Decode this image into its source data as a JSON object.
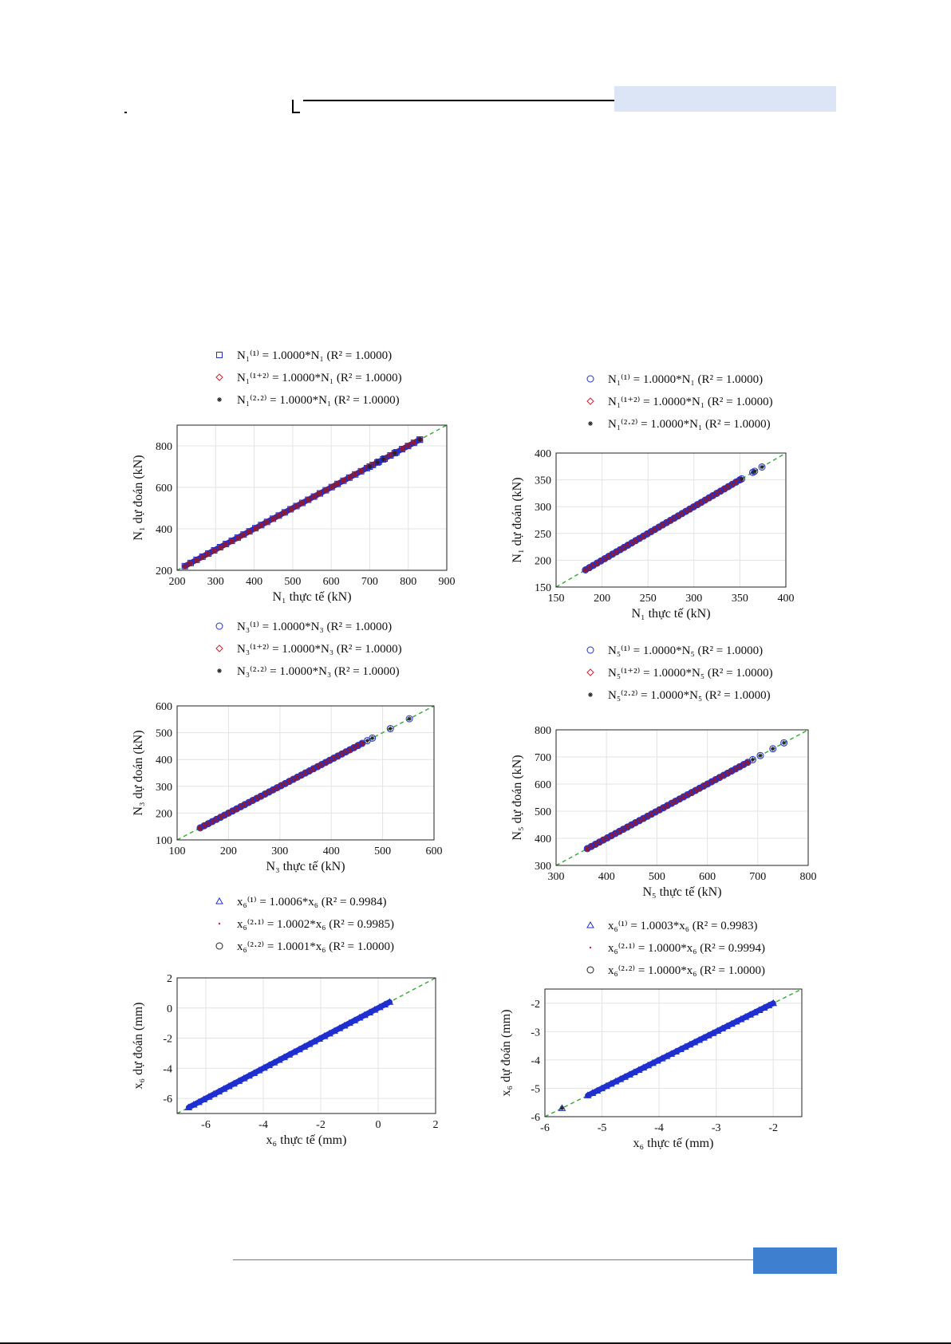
{
  "page": {
    "header_accent_color": "#dbe5f5",
    "footer_line_color": "#4f7fc9",
    "footer_box_color": "#3f7fcf"
  },
  "chart_data": [
    {
      "id": "N1-left",
      "type": "scatter",
      "legend": [
        {
          "label": "N₁⁽¹⁾ = 1.0000*N₁ (R² = 1.0000)",
          "marker": "square",
          "color": "#1f2fd0"
        },
        {
          "label": "N₁⁽¹⁺²⁾ = 1.0000*N₁ (R² = 1.0000)",
          "marker": "diamond",
          "color": "#d01f2f"
        },
        {
          "label": "N₁⁽²·²⁾ = 1.0000*N₁ (R² = 1.0000)",
          "marker": "star",
          "color": "#222222"
        }
      ],
      "xlabel": "N₁ thực tế (kN)",
      "ylabel": "N₁ dự đoán (kN)",
      "xlim": [
        200,
        900
      ],
      "ylim": [
        200,
        900
      ],
      "xticks": [
        200,
        300,
        400,
        500,
        600,
        700,
        800,
        900
      ],
      "yticks": [
        200,
        400,
        600,
        800
      ],
      "grid": true,
      "reference_line": "y = x",
      "reference_color": "#33aa33",
      "series_range": [
        220,
        830
      ],
      "outliers": [
        700,
        720,
        735,
        765,
        830
      ],
      "scatter_color": "#8a1a3a"
    },
    {
      "id": "N1-right",
      "type": "scatter",
      "legend": [
        {
          "label": "N₁⁽¹⁾ = 1.0000*N₁ (R² = 1.0000)",
          "marker": "circle",
          "color": "#1f2fd0"
        },
        {
          "label": "N₁⁽¹⁺²⁾ = 1.0000*N₁ (R² = 1.0000)",
          "marker": "diamond",
          "color": "#d01f2f"
        },
        {
          "label": "N₁⁽²·²⁾ = 1.0000*N₁ (R² = 1.0000)",
          "marker": "star",
          "color": "#222222"
        }
      ],
      "xlabel": "N₁ thực tế (kN)",
      "ylabel": "N₁ dự đoán (kN)",
      "xlim": [
        150,
        400
      ],
      "ylim": [
        150,
        400
      ],
      "xticks": [
        150,
        200,
        250,
        300,
        350,
        400
      ],
      "yticks": [
        150,
        200,
        250,
        300,
        350,
        400
      ],
      "grid": true,
      "reference_line": "y = x",
      "reference_color": "#33aa33",
      "series_range": [
        182,
        350
      ],
      "outliers": [
        352,
        364,
        366,
        374
      ],
      "scatter_color": "#8a1a3a"
    },
    {
      "id": "N3-left",
      "type": "scatter",
      "legend": [
        {
          "label": "N₃⁽¹⁾ = 1.0000*N₃ (R² = 1.0000)",
          "marker": "circle",
          "color": "#1f2fd0"
        },
        {
          "label": "N₃⁽¹⁺²⁾ = 1.0000*N₃ (R² = 1.0000)",
          "marker": "diamond",
          "color": "#d01f2f"
        },
        {
          "label": "N₃⁽²·²⁾ = 1.0000*N₃ (R² = 1.0000)",
          "marker": "star",
          "color": "#222222"
        }
      ],
      "xlabel": "N₃ thực tế (kN)",
      "ylabel": "N₃ dự đoán (kN)",
      "xlim": [
        100,
        600
      ],
      "ylim": [
        100,
        600
      ],
      "xticks": [
        100,
        200,
        300,
        400,
        500,
        600
      ],
      "yticks": [
        100,
        200,
        300,
        400,
        500,
        600
      ],
      "grid": true,
      "reference_line": "y = x",
      "reference_color": "#33aa33",
      "series_range": [
        145,
        460
      ],
      "outliers": [
        470,
        480,
        515,
        552
      ],
      "scatter_color": "#8a1a3a"
    },
    {
      "id": "N5-right",
      "type": "scatter",
      "legend": [
        {
          "label": "N₅⁽¹⁾ = 1.0000*N₅ (R² = 1.0000)",
          "marker": "circle",
          "color": "#1f2fd0"
        },
        {
          "label": "N₅⁽¹⁺²⁾ = 1.0000*N₅ (R² = 1.0000)",
          "marker": "diamond",
          "color": "#d01f2f"
        },
        {
          "label": "N₅⁽²·²⁾ = 1.0000*N₅ (R² = 1.0000)",
          "marker": "star",
          "color": "#222222"
        }
      ],
      "xlabel": "N₅ thực tế (kN)",
      "ylabel": "N₅ dự đoán (kN)",
      "xlim": [
        300,
        800
      ],
      "ylim": [
        300,
        800
      ],
      "xticks": [
        300,
        400,
        500,
        600,
        700,
        800
      ],
      "yticks": [
        300,
        400,
        500,
        600,
        700,
        800
      ],
      "grid": true,
      "reference_line": "y = x",
      "reference_color": "#33aa33",
      "series_range": [
        362,
        680
      ],
      "outliers": [
        690,
        705,
        730,
        752
      ],
      "scatter_color": "#8a1a3a"
    },
    {
      "id": "x6-left",
      "type": "scatter",
      "legend": [
        {
          "label": "x₆⁽¹⁾ = 1.0006*x₆ (R² = 0.9984)",
          "marker": "triangle",
          "color": "#1f2fd0"
        },
        {
          "label": "x₆⁽²·¹⁾ = 1.0002*x₆ (R² = 0.9985)",
          "marker": "dot",
          "color": "#d01f2f"
        },
        {
          "label": "x₆⁽²·²⁾ = 1.0001*x₆ (R² = 1.0000)",
          "marker": "circle",
          "color": "#222222"
        }
      ],
      "xlabel": "x₆ thực tế (mm)",
      "ylabel": "x₆ dự đoán (mm)",
      "xlim": [
        -7,
        2
      ],
      "ylim": [
        -7,
        2
      ],
      "xticks": [
        -6,
        -4,
        -2,
        0,
        2
      ],
      "yticks": [
        -6,
        -4,
        -2,
        0,
        2
      ],
      "grid": true,
      "reference_line": "y = x",
      "reference_color": "#33aa33",
      "series_range": [
        -6.6,
        0.4
      ],
      "outliers": [],
      "scatter_color": "#1f2fd0"
    },
    {
      "id": "x6-right",
      "type": "scatter",
      "legend": [
        {
          "label": "x₆⁽¹⁾ = 1.0003*x₆ (R² = 0.9983)",
          "marker": "triangle",
          "color": "#1f2fd0"
        },
        {
          "label": "x₆⁽²·¹⁾ = 1.0000*x₆ (R² = 0.9994)",
          "marker": "dot",
          "color": "#d01f2f"
        },
        {
          "label": "x₆⁽²·²⁾ = 1.0000*x₆ (R² = 1.0000)",
          "marker": "circle",
          "color": "#222222"
        }
      ],
      "xlabel": "x₆ thực tế (mm)",
      "ylabel": "x₆ dự đoán (mm)",
      "xlim": [
        -6,
        -1.5
      ],
      "ylim": [
        -6,
        -1.5
      ],
      "xticks": [
        -6,
        -5,
        -4,
        -3,
        -2
      ],
      "yticks": [
        -6,
        -5,
        -4,
        -3,
        -2
      ],
      "grid": true,
      "reference_line": "y = x",
      "reference_color": "#33aa33",
      "series_range": [
        -5.25,
        -2.0
      ],
      "outliers": [
        -5.7
      ],
      "scatter_color": "#1f2fd0"
    }
  ]
}
